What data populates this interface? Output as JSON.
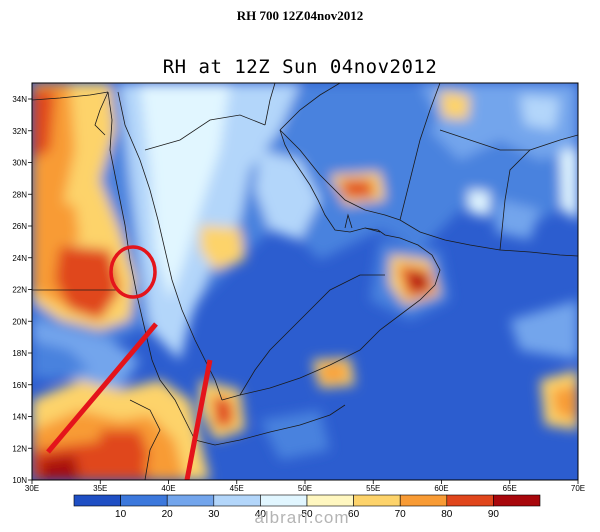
{
  "page_title": "RH 700 12Z04nov2012",
  "map_title": "RH at 12Z Sun 04nov2012",
  "latitude_labels": [
    "34N",
    "32N",
    "30N",
    "28N",
    "26N",
    "24N",
    "22N",
    "20N",
    "18N",
    "16N",
    "14N",
    "12N",
    "10N"
  ],
  "longitude_labels": [
    "30E",
    "35E",
    "40E",
    "45E",
    "50E",
    "55E",
    "60E",
    "65E",
    "70E"
  ],
  "colorbar": {
    "labels": [
      "10",
      "20",
      "30",
      "40",
      "50",
      "60",
      "70",
      "80",
      "90"
    ],
    "colors": [
      "#1f4fc4",
      "#3c78dc",
      "#73a5ec",
      "#b3d6fa",
      "#e1f6ff",
      "#fff7c0",
      "#fdd36b",
      "#f89b35",
      "#e0461c",
      "#a8070c"
    ]
  },
  "colors": {
    "very_dry": "#2c5dcf",
    "dry": "#4a82de",
    "moist": "#fdd36b",
    "humid": "#e0461c",
    "saturated": "#a8070c",
    "annotation": "#e4141b",
    "coastline": "#1a1a1a"
  },
  "annotations": [
    "red-circle",
    "red-line-left",
    "red-line-right"
  ],
  "watermark": "albrari.com"
}
